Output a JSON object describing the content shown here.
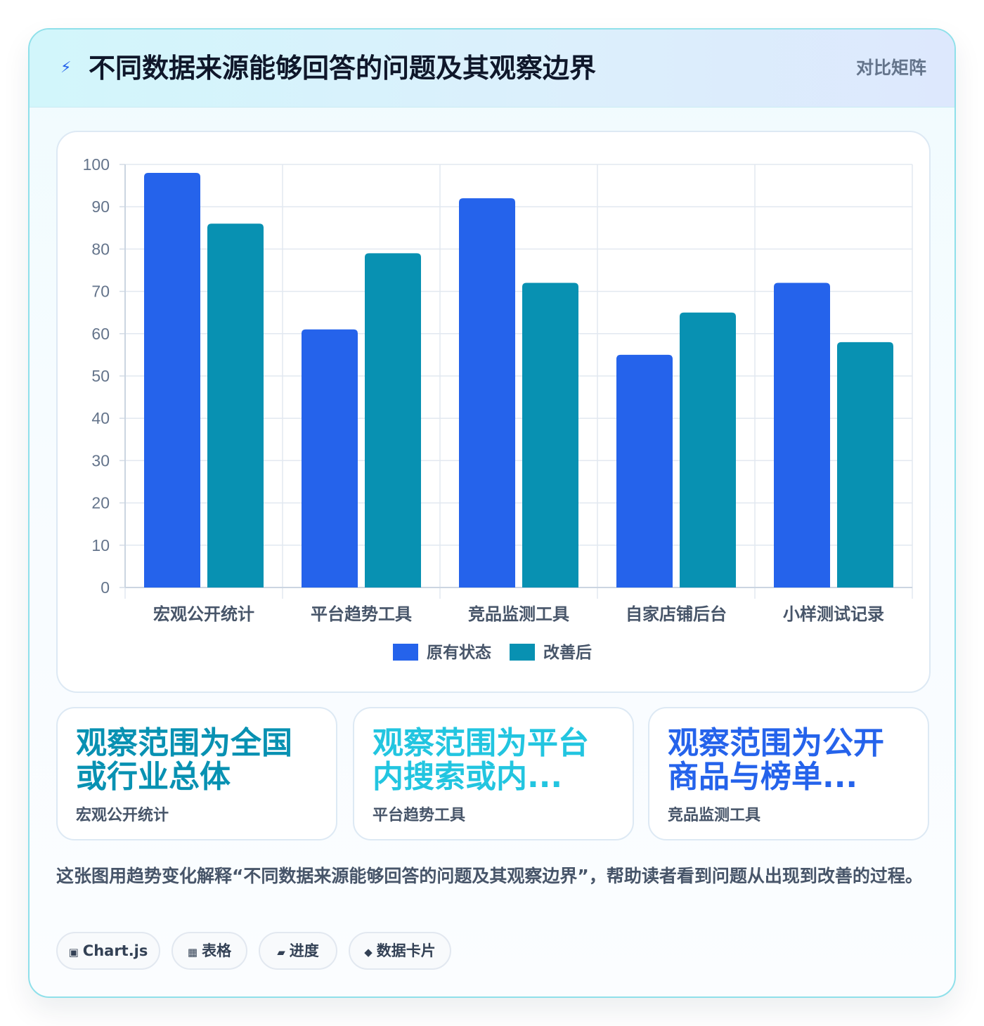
{
  "header": {
    "icon": "lightning-icon",
    "title": "不同数据来源能够回答的问题及其观察边界",
    "badge": "对比矩阵"
  },
  "chart_data": {
    "type": "bar",
    "categories": [
      "宏观公开统计",
      "平台趋势工具",
      "竞品监测工具",
      "自家店铺后台",
      "小样测试记录"
    ],
    "series": [
      {
        "name": "原有状态",
        "values": [
          98,
          61,
          92,
          55,
          72
        ],
        "color": "#2563eb"
      },
      {
        "name": "改善后",
        "values": [
          86,
          79,
          72,
          65,
          58
        ],
        "color": "#0891b2"
      }
    ],
    "ylim": [
      0,
      100
    ],
    "yticks": [
      0,
      10,
      20,
      30,
      40,
      50,
      60,
      70,
      80,
      90,
      100
    ],
    "grid": true,
    "legend": "bottom"
  },
  "stats": [
    {
      "value": "观察范围为全国或行业总体",
      "label": "宏观公开统计",
      "color": "#0891b2"
    },
    {
      "value": "观察范围为平台内搜索或内...",
      "label": "平台趋势工具",
      "color": "#22c5e0"
    },
    {
      "value": "观察范围为公开商品与榜单...",
      "label": "竞品监测工具",
      "color": "#2563eb"
    }
  ],
  "description": "这张图用趋势变化解释“不同数据来源能够回答的问题及其观察边界”，帮助读者看到问题从出现到改善的过程。",
  "tags": [
    {
      "icon": "▣",
      "label": "Chart.js"
    },
    {
      "icon": "▦",
      "label": "表格"
    },
    {
      "icon": "▰",
      "label": "进度"
    },
    {
      "icon": "◆",
      "label": "数据卡片"
    }
  ]
}
